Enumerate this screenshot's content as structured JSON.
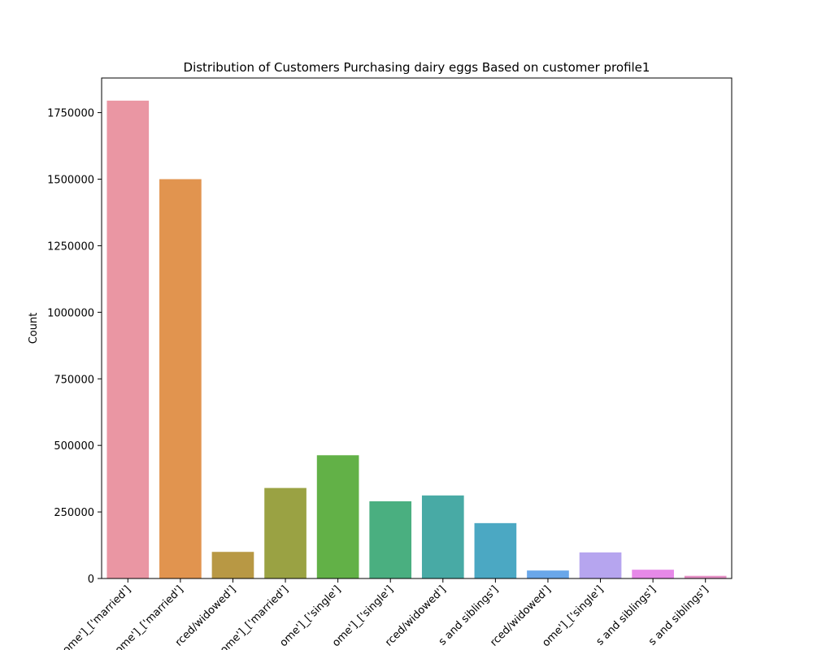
{
  "chart_data": {
    "type": "bar",
    "title": "Distribution of Customers Purchasing dairy eggs Based on customer profile1",
    "xlabel": "",
    "ylabel": "Count",
    "ylim": [
      0,
      1880000
    ],
    "yticks": [
      0,
      250000,
      500000,
      750000,
      1000000,
      1250000,
      1500000,
      1750000
    ],
    "ytick_labels": [
      "0",
      "250000",
      "500000",
      "750000",
      "1000000",
      "1250000",
      "1500000",
      "1750000"
    ],
    "categories": [
      "ome']_['married']",
      "ome']_['married']",
      "rced/widowed']",
      "ome']_['married']",
      "ome']_['single']",
      "ome']_['single']",
      "rced/widowed']",
      "s and siblings']",
      "rced/widowed']",
      "ome']_['single']",
      "s and siblings']",
      "s and siblings']"
    ],
    "values": [
      1795000,
      1500000,
      100000,
      340000,
      463000,
      290000,
      312000,
      208000,
      30000,
      98000,
      33000,
      10000
    ],
    "colors": [
      "#ea96a3",
      "#e1944f",
      "#b89844",
      "#9aa243",
      "#62b147",
      "#4aaf80",
      "#48aaa5",
      "#4ba8c3",
      "#6aa7e9",
      "#b6a5ef",
      "#e689e8",
      "#e691c6"
    ],
    "grid": false,
    "legend": "none"
  }
}
